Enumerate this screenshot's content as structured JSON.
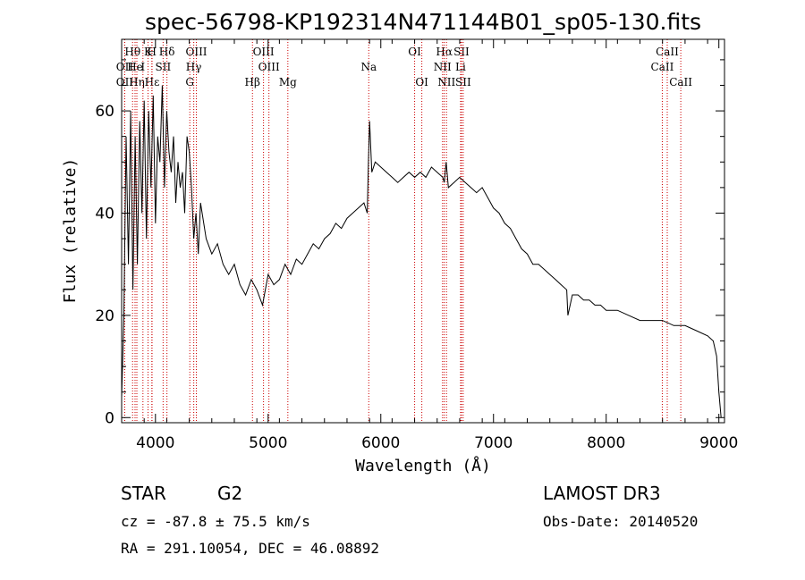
{
  "title": "spec-56798-KP192314N471144B01_sp05-130.fits",
  "info": {
    "class": "STAR",
    "subclass": "G2",
    "survey": "LAMOST DR3",
    "cz": "cz = -87.8 ± 75.5 km/s",
    "obs_date": "Obs-Date: 20140520",
    "radec": "RA = 291.10054, DEC =  46.08892"
  },
  "colors": {
    "spectrum": "#000000",
    "line_markers": "#cc0000",
    "axes": "#000000"
  },
  "chart_data": {
    "type": "line",
    "title": "spec-56798-KP192314N471144B01_sp05-130.fits",
    "xlabel": "Wavelength (Å)",
    "ylabel": "Flux (relative)",
    "xlim": [
      3700,
      9050
    ],
    "ylim": [
      -1,
      74
    ],
    "xticks": [
      4000,
      5000,
      6000,
      7000,
      8000,
      9000
    ],
    "yticks": [
      0,
      20,
      40,
      60
    ],
    "grid": false,
    "legend": "none",
    "series": [
      {
        "x": [
          3700,
          3720,
          3740,
          3760,
          3780,
          3800,
          3820,
          3840,
          3860,
          3880,
          3900,
          3920,
          3940,
          3960,
          3980,
          4000,
          4020,
          4040,
          4060,
          4080,
          4100,
          4120,
          4140,
          4160,
          4180,
          4200,
          4220,
          4240,
          4260,
          4280,
          4300,
          4320,
          4340,
          4360,
          4380,
          4400,
          4450,
          4500,
          4550,
          4600,
          4650,
          4700,
          4750,
          4800,
          4850,
          4900,
          4950,
          5000,
          5050,
          5100,
          5150,
          5200,
          5250,
          5300,
          5350,
          5400,
          5450,
          5500,
          5550,
          5600,
          5650,
          5700,
          5750,
          5800,
          5850,
          5880,
          5890,
          5900,
          5920,
          5950,
          6000,
          6050,
          6100,
          6150,
          6200,
          6250,
          6300,
          6350,
          6400,
          6450,
          6500,
          6550,
          6563,
          6580,
          6600,
          6650,
          6700,
          6750,
          6800,
          6850,
          6900,
          6950,
          7000,
          7050,
          7100,
          7150,
          7200,
          7250,
          7300,
          7350,
          7400,
          7450,
          7500,
          7550,
          7600,
          7650,
          7660,
          7700,
          7750,
          7800,
          7850,
          7900,
          7950,
          8000,
          8100,
          8200,
          8300,
          8400,
          8500,
          8600,
          8700,
          8800,
          8900,
          8950,
          8980,
          9000,
          9020
        ],
        "y": [
          4,
          20,
          55,
          30,
          60,
          25,
          55,
          30,
          58,
          40,
          62,
          35,
          60,
          45,
          63,
          38,
          55,
          50,
          65,
          45,
          60,
          52,
          48,
          55,
          42,
          50,
          45,
          48,
          40,
          55,
          52,
          45,
          35,
          40,
          32,
          42,
          35,
          32,
          34,
          30,
          28,
          30,
          26,
          24,
          27,
          25,
          22,
          28,
          26,
          27,
          30,
          28,
          31,
          30,
          32,
          34,
          33,
          35,
          36,
          38,
          37,
          39,
          40,
          41,
          42,
          40,
          50,
          58,
          48,
          50,
          49,
          48,
          47,
          46,
          47,
          48,
          47,
          48,
          47,
          49,
          48,
          47,
          46,
          50,
          45,
          46,
          47,
          46,
          45,
          44,
          45,
          43,
          41,
          40,
          38,
          37,
          35,
          33,
          32,
          30,
          30,
          29,
          28,
          27,
          26,
          25,
          20,
          24,
          24,
          23,
          23,
          22,
          22,
          21,
          21,
          20,
          19,
          19,
          19,
          18,
          18,
          17,
          16,
          15,
          12,
          5,
          0
        ]
      }
    ],
    "line_markers": [
      {
        "label": "Hθ",
        "x": 3797,
        "row": 1
      },
      {
        "label": "OII",
        "x": 3727,
        "row": 2
      },
      {
        "label": "OII",
        "x": 3727,
        "row": 3
      },
      {
        "label": "He",
        "x": 3819,
        "row": 2
      },
      {
        "label": "Hη",
        "x": 3835,
        "row": 3
      },
      {
        "label": "I",
        "x": 3889,
        "row": 2
      },
      {
        "label": "Hε",
        "x": 3970,
        "row": 3
      },
      {
        "label": "K",
        "x": 3934,
        "row": 1
      },
      {
        "label": "H",
        "x": 3968,
        "row": 1
      },
      {
        "label": "SII",
        "x": 4068,
        "row": 2
      },
      {
        "label": "Hδ",
        "x": 4102,
        "row": 1
      },
      {
        "label": "OIII",
        "x": 4363,
        "row": 1
      },
      {
        "label": "Hγ",
        "x": 4340,
        "row": 2
      },
      {
        "label": "G",
        "x": 4305,
        "row": 3
      },
      {
        "label": "Hβ",
        "x": 4861,
        "row": 3
      },
      {
        "label": "OIII",
        "x": 4959,
        "row": 1
      },
      {
        "label": "OIII",
        "x": 5007,
        "row": 2
      },
      {
        "label": "Mg",
        "x": 5175,
        "row": 3
      },
      {
        "label": "Na",
        "x": 5893,
        "row": 2
      },
      {
        "label": "OI",
        "x": 6300,
        "row": 1
      },
      {
        "label": "OI",
        "x": 6364,
        "row": 3
      },
      {
        "label": "Hα",
        "x": 6563,
        "row": 1
      },
      {
        "label": "NII",
        "x": 6548,
        "row": 2
      },
      {
        "label": "NII",
        "x": 6583,
        "row": 3
      },
      {
        "label": "SII",
        "x": 6716,
        "row": 1
      },
      {
        "label": "Li",
        "x": 6708,
        "row": 2
      },
      {
        "label": "SII",
        "x": 6731,
        "row": 3
      },
      {
        "label": "CaII",
        "x": 8542,
        "row": 1
      },
      {
        "label": "CaII",
        "x": 8498,
        "row": 2
      },
      {
        "label": "CaII",
        "x": 8662,
        "row": 3
      }
    ]
  }
}
